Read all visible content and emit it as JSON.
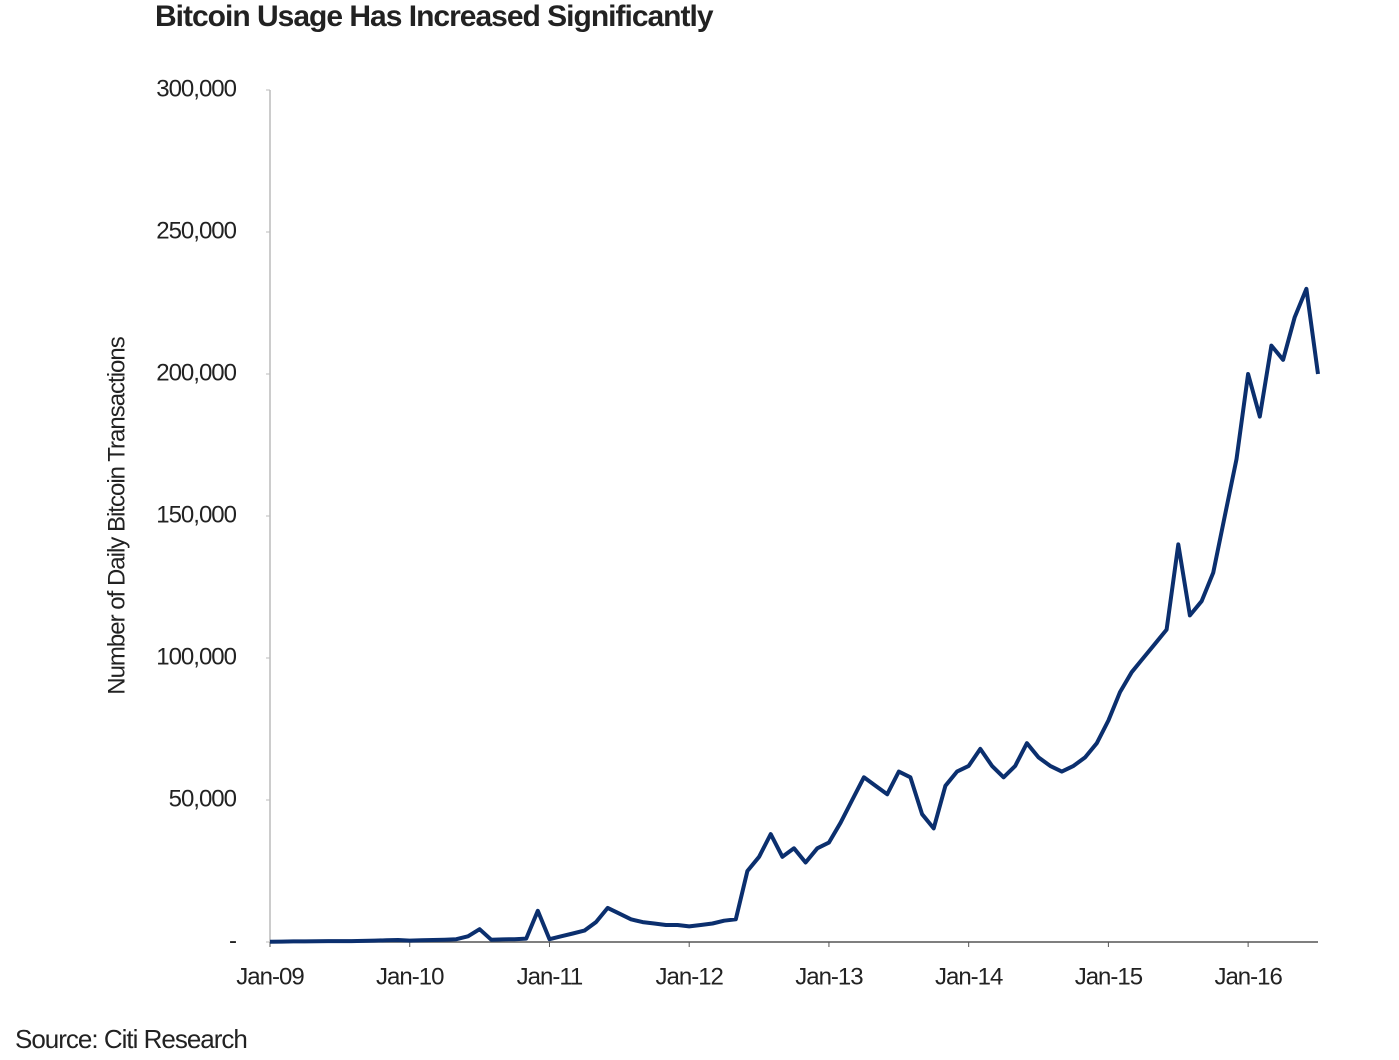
{
  "chart_data": {
    "type": "line",
    "title": "Bitcoin Usage Has Increased Significantly",
    "ylabel": "Number of Daily Bitcoin Transactions",
    "source": "Source: Citi Research",
    "x": [
      "2009-01",
      "2009-02",
      "2009-03",
      "2009-04",
      "2009-05",
      "2009-06",
      "2009-07",
      "2009-08",
      "2009-09",
      "2009-10",
      "2009-11",
      "2009-12",
      "2010-01",
      "2010-02",
      "2010-03",
      "2010-04",
      "2010-05",
      "2010-06",
      "2010-07",
      "2010-08",
      "2010-09",
      "2010-10",
      "2010-11",
      "2010-12",
      "2011-01",
      "2011-02",
      "2011-03",
      "2011-04",
      "2011-05",
      "2011-06",
      "2011-07",
      "2011-08",
      "2011-09",
      "2011-10",
      "2011-11",
      "2011-12",
      "2012-01",
      "2012-02",
      "2012-03",
      "2012-04",
      "2012-05",
      "2012-06",
      "2012-07",
      "2012-08",
      "2012-09",
      "2012-10",
      "2012-11",
      "2012-12",
      "2013-01",
      "2013-02",
      "2013-03",
      "2013-04",
      "2013-05",
      "2013-06",
      "2013-07",
      "2013-08",
      "2013-09",
      "2013-10",
      "2013-11",
      "2013-12",
      "2014-01",
      "2014-02",
      "2014-03",
      "2014-04",
      "2014-05",
      "2014-06",
      "2014-07",
      "2014-08",
      "2014-09",
      "2014-10",
      "2014-11",
      "2014-12",
      "2015-01",
      "2015-02",
      "2015-03",
      "2015-04",
      "2015-05",
      "2015-06",
      "2015-07",
      "2015-08",
      "2015-09",
      "2015-10",
      "2015-11",
      "2015-12",
      "2016-01",
      "2016-02",
      "2016-03",
      "2016-04",
      "2016-05",
      "2016-06",
      "2016-07"
    ],
    "series": [
      {
        "name": "Daily Bitcoin Transactions",
        "color": "#0b2f6e",
        "values": [
          100,
          150,
          200,
          200,
          250,
          300,
          300,
          300,
          400,
          500,
          600,
          700,
          500,
          600,
          700,
          800,
          1000,
          2000,
          4500,
          800,
          900,
          1000,
          1200,
          11000,
          1000,
          2000,
          3000,
          4000,
          7000,
          12000,
          10000,
          8000,
          7000,
          6500,
          6000,
          6000,
          5500,
          6000,
          6500,
          7500,
          8000,
          25000,
          30000,
          38000,
          30000,
          33000,
          28000,
          33000,
          35000,
          42000,
          50000,
          58000,
          55000,
          52000,
          60000,
          58000,
          45000,
          40000,
          55000,
          60000,
          62000,
          68000,
          62000,
          58000,
          62000,
          70000,
          65000,
          62000,
          60000,
          62000,
          65000,
          70000,
          78000,
          88000,
          95000,
          100000,
          105000,
          110000,
          140000,
          115000,
          120000,
          130000,
          150000,
          170000,
          200000,
          185000,
          210000,
          205000,
          220000,
          230000,
          200000
        ]
      }
    ],
    "xlim": [
      "2009-01",
      "2016-07"
    ],
    "xticks": [
      {
        "value": "2009-01",
        "label": "Jan-09"
      },
      {
        "value": "2010-01",
        "label": "Jan-10"
      },
      {
        "value": "2011-01",
        "label": "Jan-11"
      },
      {
        "value": "2012-01",
        "label": "Jan-12"
      },
      {
        "value": "2013-01",
        "label": "Jan-13"
      },
      {
        "value": "2014-01",
        "label": "Jan-14"
      },
      {
        "value": "2015-01",
        "label": "Jan-15"
      },
      {
        "value": "2016-01",
        "label": "Jan-16"
      }
    ],
    "ylim": [
      0,
      300000
    ],
    "yticks": [
      {
        "value": 0,
        "label": "-"
      },
      {
        "value": 50000,
        "label": "50,000"
      },
      {
        "value": 100000,
        "label": "100,000"
      },
      {
        "value": 150000,
        "label": "150,000"
      },
      {
        "value": 200000,
        "label": "200,000"
      },
      {
        "value": 250000,
        "label": "250,000"
      },
      {
        "value": 300000,
        "label": "300,000"
      }
    ],
    "grid": false
  }
}
